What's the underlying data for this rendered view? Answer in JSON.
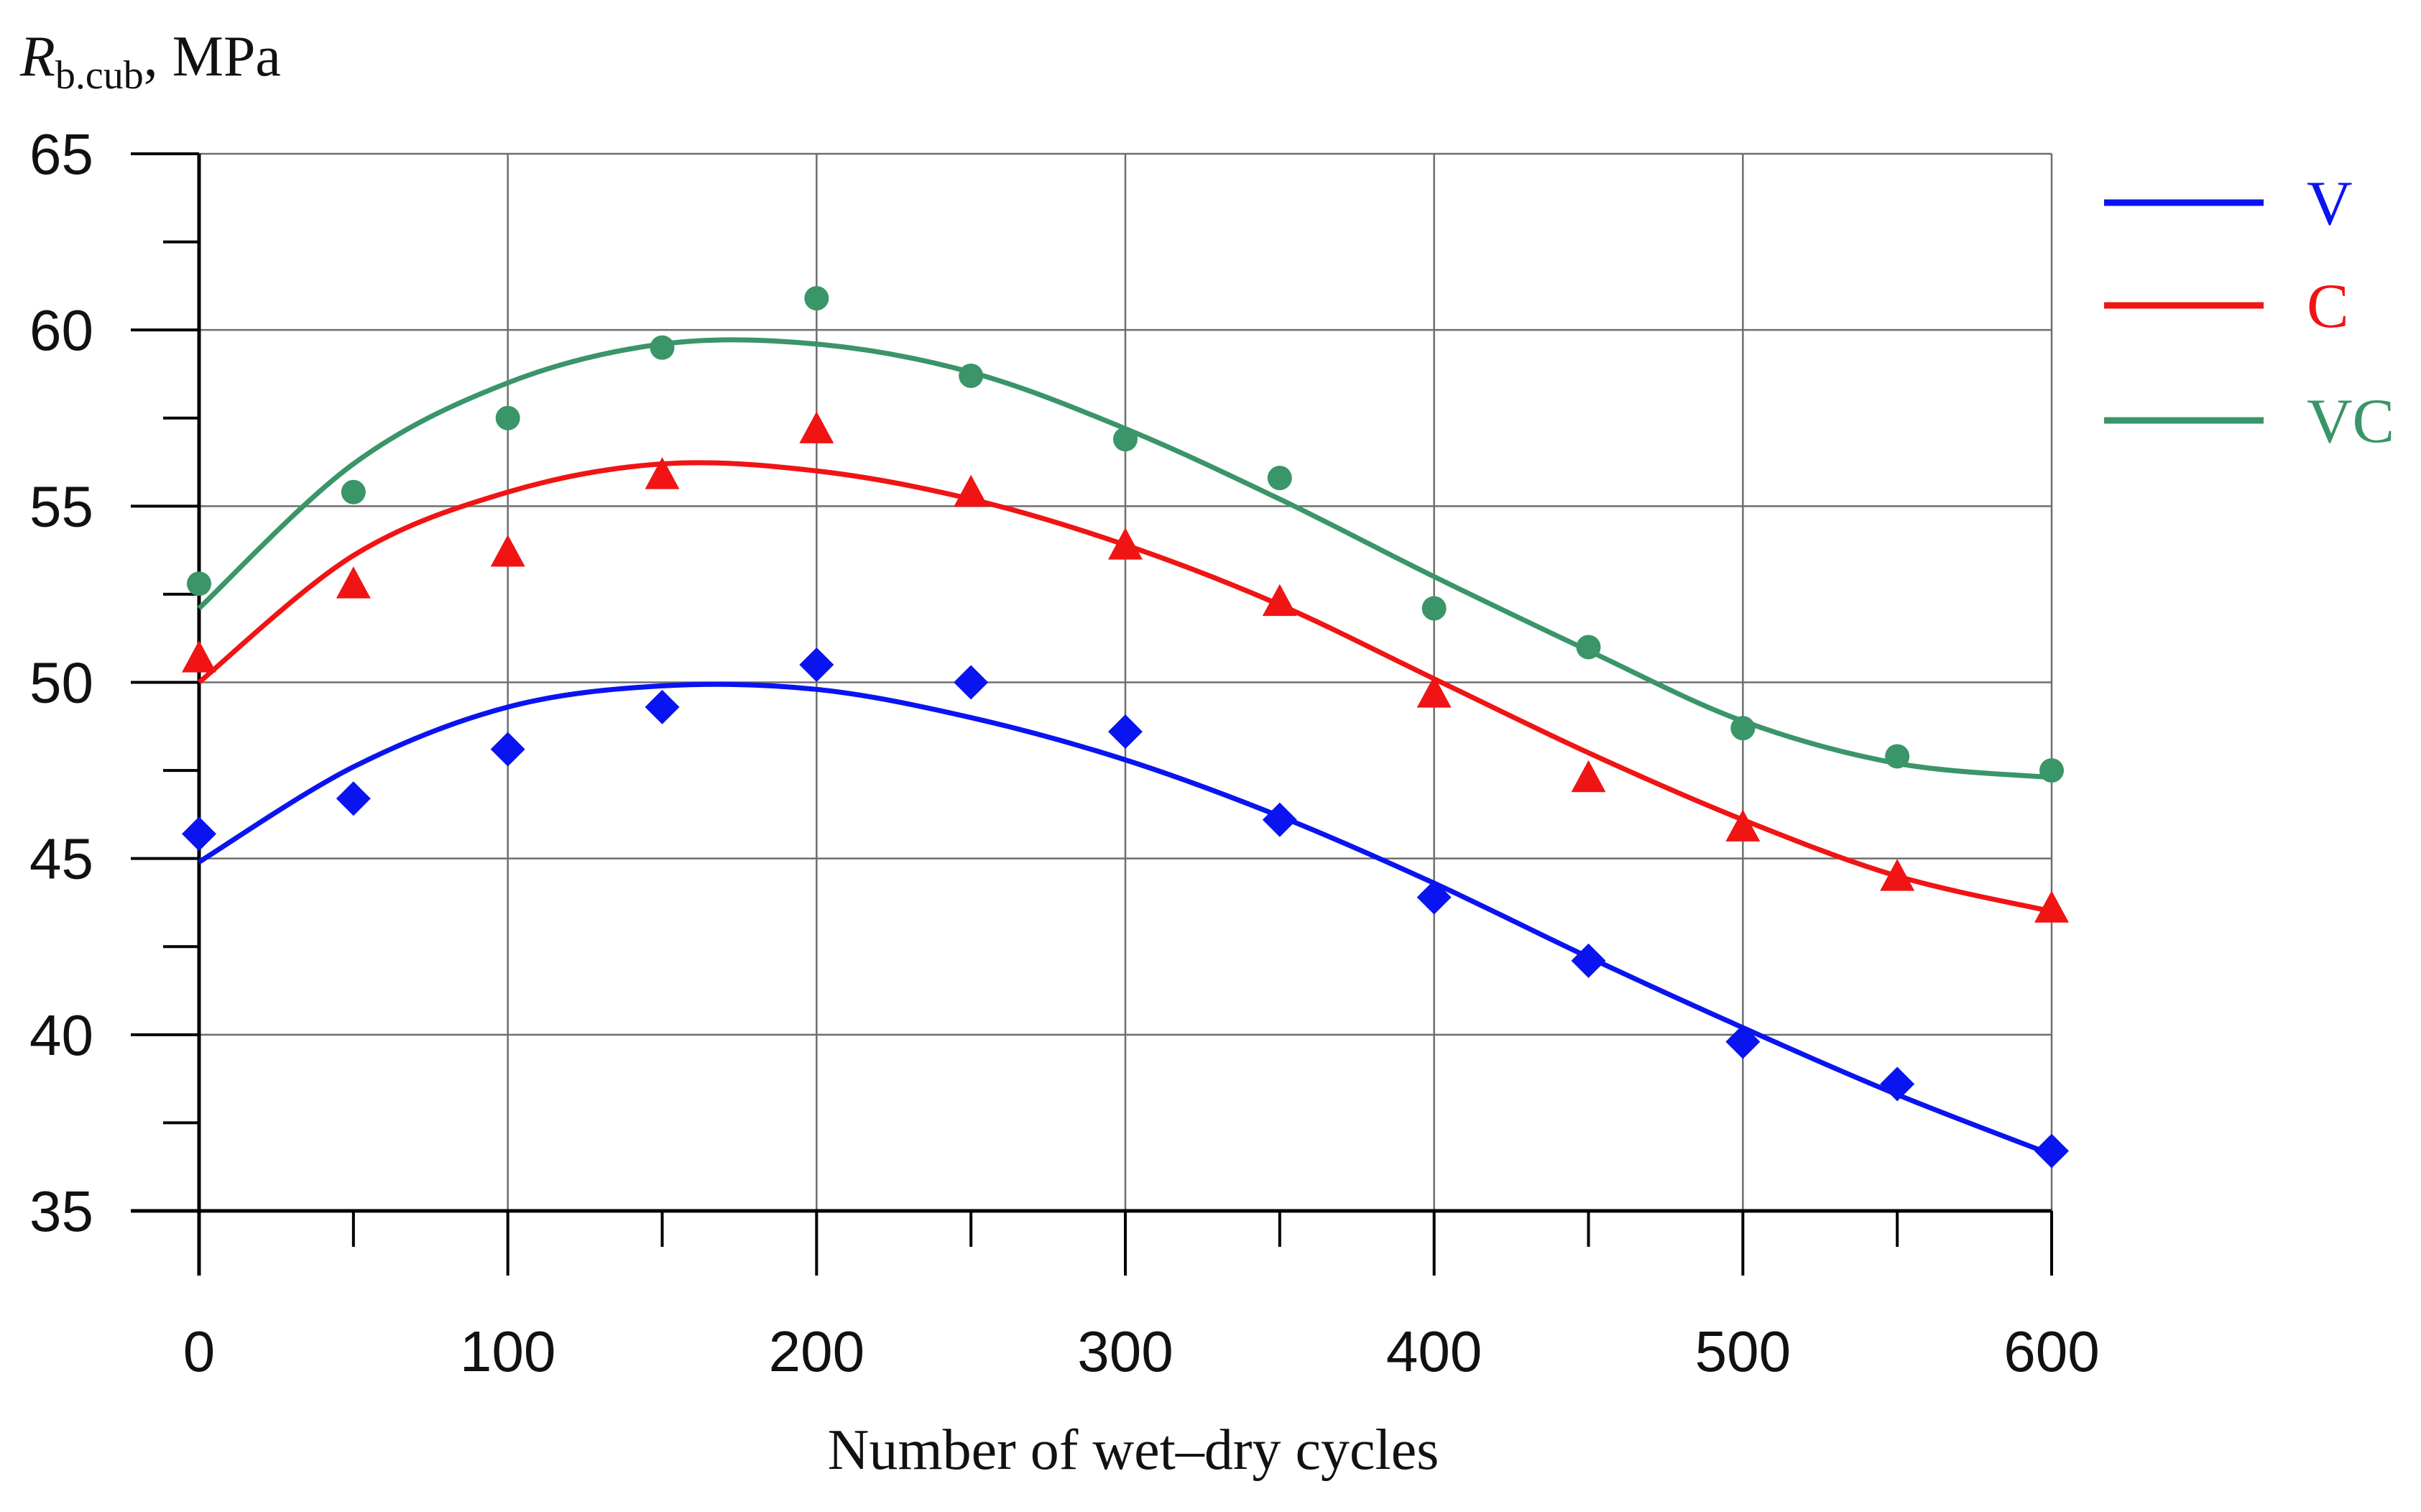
{
  "chart_data": {
    "type": "scatter",
    "title": "",
    "ylabel": {
      "main": "R",
      "subscript": "b.cub",
      "unit": ", MPa"
    },
    "xlabel": "Number of wet–dry cycles",
    "xlim": [
      0,
      600
    ],
    "ylim": [
      35,
      65
    ],
    "xticks": [
      0,
      100,
      200,
      300,
      400,
      500,
      600
    ],
    "xticks_minor": [
      50,
      150,
      250,
      350,
      450,
      550
    ],
    "yticks": [
      35,
      40,
      45,
      50,
      55,
      60,
      65
    ],
    "yticks_minor": [
      37.5,
      42.5,
      47.5,
      52.5,
      57.5,
      62.5
    ],
    "x_tick_labels": [
      "0",
      "100",
      "200",
      "300",
      "400",
      "500",
      "600"
    ],
    "y_tick_labels": [
      "35",
      "40",
      "45",
      "50",
      "55",
      "60",
      "65"
    ],
    "grid": true,
    "legend_position": "right",
    "x": [
      0,
      50,
      100,
      150,
      200,
      250,
      300,
      350,
      400,
      450,
      500,
      550,
      600
    ],
    "series": [
      {
        "name": "V",
        "color": "#0a14f0",
        "marker": "diamond",
        "values": [
          45.7,
          46.7,
          48.1,
          49.3,
          50.5,
          50.0,
          48.6,
          46.1,
          43.9,
          42.1,
          39.8,
          38.6,
          36.7
        ],
        "fit": [
          44.9,
          47.6,
          49.3,
          49.9,
          49.8,
          49.0,
          47.8,
          46.2,
          44.3,
          42.2,
          40.2,
          38.3,
          36.6
        ]
      },
      {
        "name": "C",
        "color": "#f01414",
        "marker": "triangle",
        "values": [
          50.7,
          52.8,
          53.7,
          55.9,
          57.2,
          55.4,
          53.9,
          52.3,
          49.7,
          47.3,
          45.9,
          44.5,
          43.6
        ],
        "fit": [
          50.0,
          53.6,
          55.4,
          56.2,
          56.0,
          55.2,
          53.9,
          52.2,
          50.1,
          48.0,
          46.1,
          44.5,
          43.5
        ]
      },
      {
        "name": "VC",
        "color": "#3a9568",
        "marker": "circle",
        "values": [
          52.8,
          55.4,
          57.5,
          59.5,
          60.9,
          58.7,
          56.9,
          55.8,
          52.1,
          51.0,
          48.7,
          47.9,
          47.5
        ],
        "fit": [
          52.1,
          56.2,
          58.5,
          59.6,
          59.6,
          58.8,
          57.2,
          55.2,
          53.0,
          50.9,
          48.9,
          47.7,
          47.3
        ]
      }
    ]
  }
}
